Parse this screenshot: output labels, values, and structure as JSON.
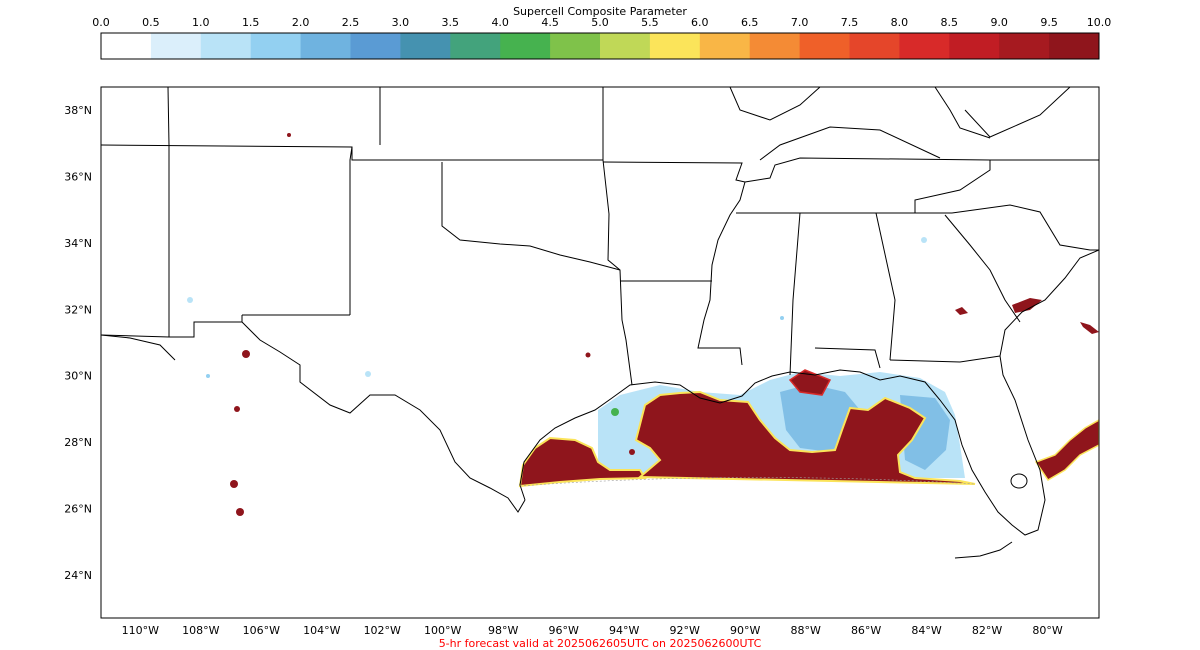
{
  "colorbar": {
    "title": "Supercell Composite Parameter",
    "ticks": [
      "0.0",
      "0.5",
      "1.0",
      "1.5",
      "2.0",
      "2.5",
      "3.0",
      "3.5",
      "4.0",
      "4.5",
      "5.0",
      "5.5",
      "6.0",
      "6.5",
      "7.0",
      "7.5",
      "8.0",
      "8.5",
      "9.0",
      "9.5",
      "10.0"
    ],
    "colors": [
      "#ffffff",
      "#dbeffb",
      "#b9e3f7",
      "#93d0f1",
      "#6fb3e0",
      "#5a9bd4",
      "#4592b0",
      "#43a37c",
      "#46b24f",
      "#7fc24a",
      "#c0d857",
      "#fbe45a",
      "#f9b646",
      "#f48b35",
      "#ef6029",
      "#e5462a",
      "#d82a29",
      "#c11d24",
      "#a61a20",
      "#8f151c"
    ]
  },
  "map": {
    "lat_labels": [
      "38°N",
      "36°N",
      "34°N",
      "32°N",
      "30°N",
      "28°N",
      "26°N",
      "24°N"
    ],
    "lon_labels": [
      "110°W",
      "108°W",
      "106°W",
      "104°W",
      "102°W",
      "100°W",
      "98°W",
      "96°W",
      "94°W",
      "92°W",
      "90°W",
      "88°W",
      "86°W",
      "84°W",
      "82°W",
      "80°W"
    ],
    "lat_range": [
      22.7,
      38.7
    ],
    "lon_range": [
      -111.3,
      -78.3
    ],
    "field_colors": {
      "high": "#8f151c",
      "edge_red": "#d82a29",
      "edge_yellow": "#fbe45a",
      "edge_green": "#46b24f",
      "low_light": "#b9e3f7",
      "low_mid": "#6fb3e0"
    }
  },
  "footer": {
    "caption": "5-hr forecast valid at 2025062605UTC on 2025062600UTC",
    "caption_color": "#ff0000"
  }
}
